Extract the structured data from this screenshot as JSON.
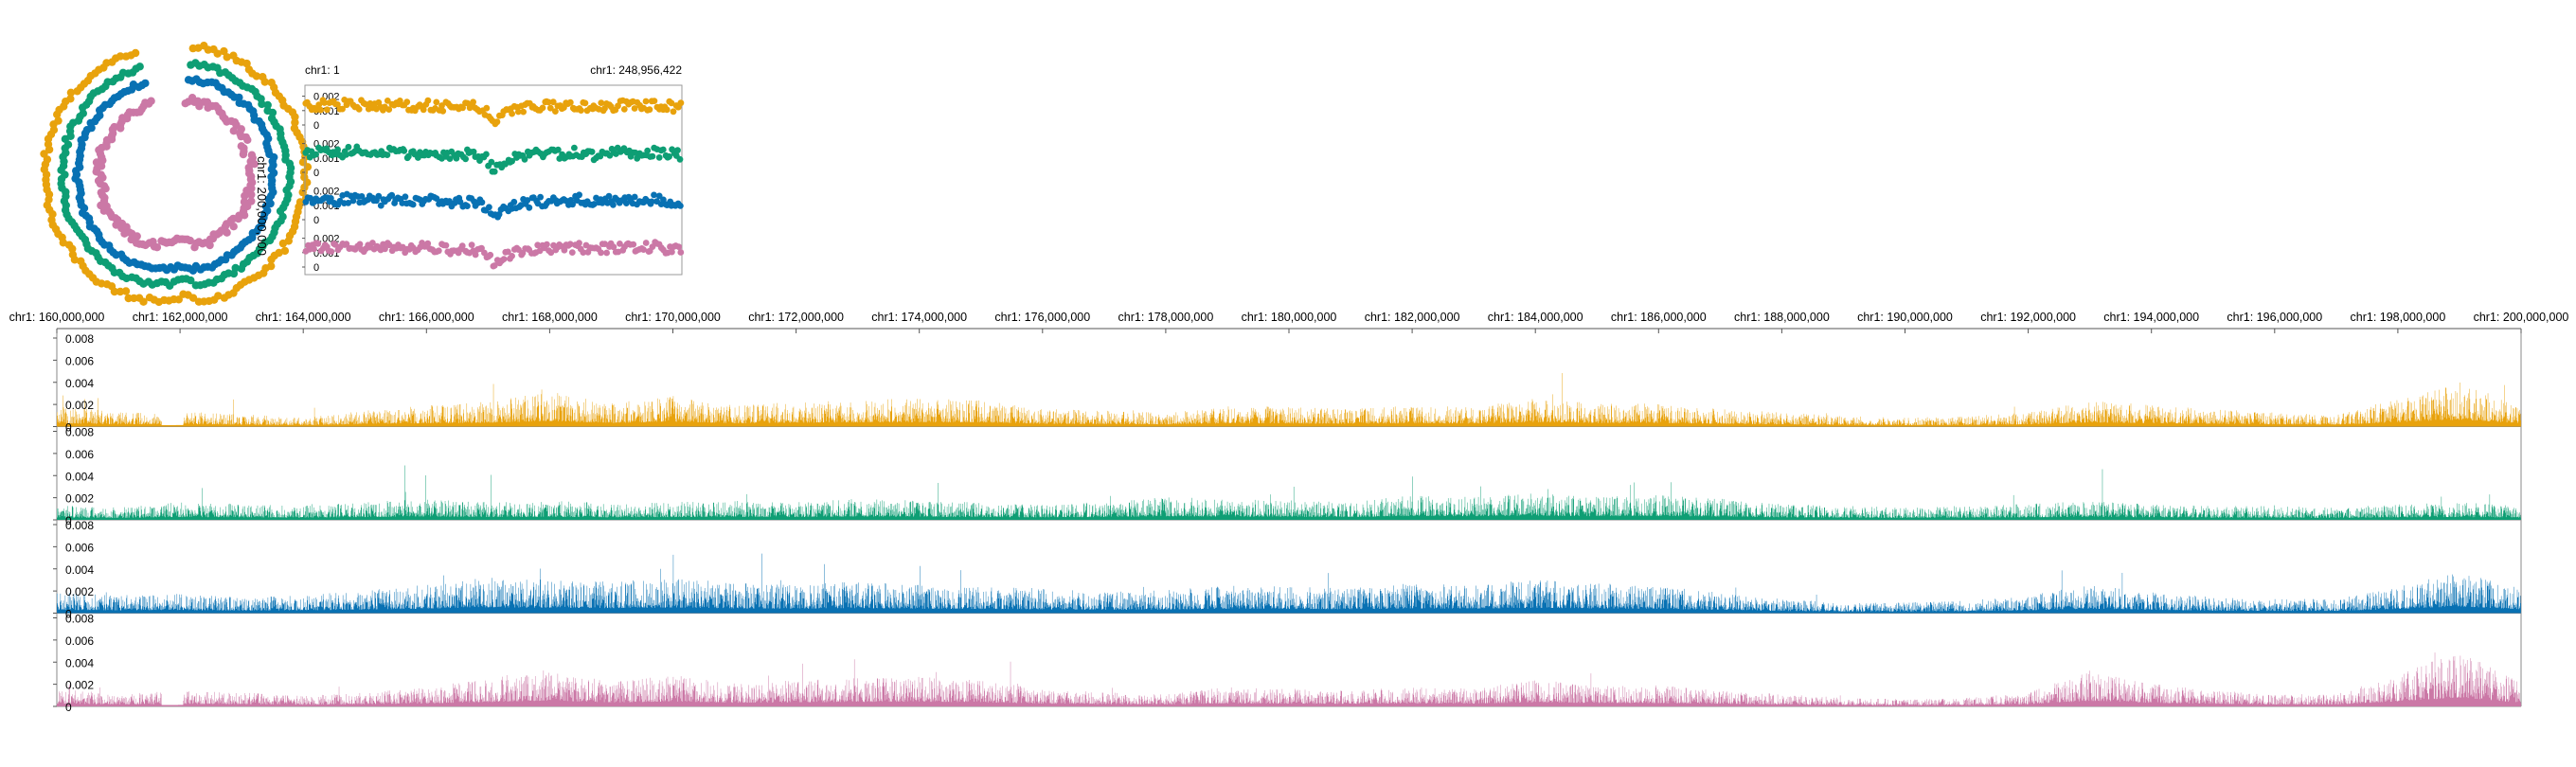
{
  "colors": {
    "series1": "#E8A20C",
    "series2": "#0E9E74",
    "series3": "#0871B3",
    "series4": "#CB78A6",
    "axis": "#555555",
    "text": "#000000"
  },
  "circos": {
    "label": "chr1: 200,000,000"
  },
  "overview": {
    "start_label": "chr1: 1",
    "end_label": "chr1: 248,956,422",
    "tracks": [
      {
        "ticks": [
          "0.002",
          "0.001",
          "0"
        ]
      },
      {
        "ticks": [
          "0.002",
          "0.001",
          "0"
        ]
      },
      {
        "ticks": [
          "0.002",
          "0.001",
          "0"
        ]
      },
      {
        "ticks": [
          "0.002",
          "0.001",
          "0"
        ]
      }
    ]
  },
  "detail": {
    "axis_labels": [
      "chr1: 160,000,000",
      "chr1: 162,000,000",
      "chr1: 164,000,000",
      "chr1: 166,000,000",
      "chr1: 168,000,000",
      "chr1: 170,000,000",
      "chr1: 172,000,000",
      "chr1: 174,000,000",
      "chr1: 176,000,000",
      "chr1: 178,000,000",
      "chr1: 180,000,000",
      "chr1: 182,000,000",
      "chr1: 184,000,000",
      "chr1: 186,000,000",
      "chr1: 188,000,000",
      "chr1: 190,000,000",
      "chr1: 192,000,000",
      "chr1: 194,000,000",
      "chr1: 196,000,000",
      "chr1: 198,000,000",
      "chr1: 200,000,000"
    ],
    "tracks": [
      {
        "ticks": [
          "0.008",
          "0.006",
          "0.004",
          "0.002",
          "0"
        ]
      },
      {
        "ticks": [
          "0.008",
          "0.006",
          "0.004",
          "0.002",
          "0"
        ]
      },
      {
        "ticks": [
          "0.008",
          "0.006",
          "0.004",
          "0.002",
          "0"
        ]
      },
      {
        "ticks": [
          "0.008",
          "0.006",
          "0.004",
          "0.002",
          "0"
        ]
      }
    ]
  },
  "chart_data": [
    {
      "type": "scatter",
      "subtype": "circular",
      "x_range": [
        1,
        248956422
      ],
      "series": [
        {
          "color": "#E8A20C"
        },
        {
          "color": "#0E9E74"
        },
        {
          "color": "#0871B3"
        },
        {
          "color": "#CB78A6"
        }
      ],
      "annotations": [
        "chr1: 200,000,000"
      ]
    },
    {
      "type": "scatter",
      "xlim": [
        1,
        248956422
      ],
      "x_labels": [
        "chr1: 1",
        "chr1: 248,956,422"
      ],
      "ylim": [
        0,
        0.0025
      ],
      "yticks": [
        0,
        0.001,
        0.002
      ],
      "profile": {
        "x": [
          0,
          10000000,
          20000000,
          30000000,
          40000000,
          50000000,
          60000000,
          70000000,
          80000000,
          90000000,
          100000000,
          110000000,
          120000000,
          125000000,
          130000000,
          140000000,
          150000000,
          160000000,
          170000000,
          180000000,
          190000000,
          200000000,
          210000000,
          220000000,
          230000000,
          240000000,
          248956422
        ],
        "y": [
          0.0012,
          0.0014,
          0.0013,
          0.0015,
          0.0014,
          0.0013,
          0.0014,
          0.0013,
          0.0014,
          0.0013,
          0.0012,
          0.0013,
          0.0009,
          0.0001,
          0.0006,
          0.0011,
          0.0012,
          0.0013,
          0.0012,
          0.0014,
          0.0012,
          0.0013,
          0.0014,
          0.0013,
          0.0014,
          0.0013,
          0.0012
        ]
      },
      "series": [
        {
          "color": "#E8A20C"
        },
        {
          "color": "#0E9E74"
        },
        {
          "color": "#0871B3"
        },
        {
          "color": "#CB78A6"
        }
      ]
    },
    {
      "type": "bar",
      "xlim": [
        160000000,
        200000000
      ],
      "ylim": [
        0,
        0.008
      ],
      "yticks": [
        0,
        0.002,
        0.004,
        0.006,
        0.008
      ],
      "xticks": [
        "chr1: 160,000,000",
        "chr1: 162,000,000",
        "chr1: 164,000,000",
        "chr1: 166,000,000",
        "chr1: 168,000,000",
        "chr1: 170,000,000",
        "chr1: 172,000,000",
        "chr1: 174,000,000",
        "chr1: 176,000,000",
        "chr1: 178,000,000",
        "chr1: 180,000,000",
        "chr1: 182,000,000",
        "chr1: 184,000,000",
        "chr1: 186,000,000",
        "chr1: 188,000,000",
        "chr1: 190,000,000",
        "chr1: 192,000,000",
        "chr1: 194,000,000",
        "chr1: 196,000,000",
        "chr1: 198,000,000",
        "chr1: 200,000,000"
      ],
      "series": [
        {
          "color": "#E8A20C",
          "x": [
            160000000,
            161000000,
            162000000,
            163000000,
            164000000,
            165000000,
            166000000,
            167000000,
            168000000,
            169000000,
            170000000,
            171000000,
            172000000,
            173000000,
            174000000,
            175000000,
            176000000,
            177000000,
            178000000,
            179000000,
            180000000,
            181000000,
            182000000,
            183000000,
            184000000,
            185000000,
            186000000,
            187000000,
            188000000,
            189000000,
            190000000,
            191000000,
            192000000,
            193000000,
            194000000,
            195000000,
            196000000,
            197000000,
            198000000,
            199000000,
            200000000
          ],
          "y": [
            0.0012,
            0.0008,
            0.0009,
            0.0007,
            0.0005,
            0.0009,
            0.0012,
            0.0014,
            0.002,
            0.0013,
            0.0018,
            0.0012,
            0.0014,
            0.0015,
            0.0016,
            0.0015,
            0.001,
            0.0009,
            0.0008,
            0.0012,
            0.0011,
            0.001,
            0.0012,
            0.0011,
            0.0016,
            0.0013,
            0.0013,
            0.001,
            0.0008,
            0.0006,
            0.0005,
            0.0006,
            0.0008,
            0.0015,
            0.0012,
            0.001,
            0.0008,
            0.0007,
            0.0016,
            0.0025,
            0.0012
          ],
          "peaks": [
            {
              "x": 170000000,
              "y": 0.0045
            },
            {
              "x": 166500000,
              "y": 0.0032
            },
            {
              "x": 198700000,
              "y": 0.0047
            },
            {
              "x": 175500000,
              "y": 0.0035
            },
            {
              "x": 160100000,
              "y": 0.004
            }
          ]
        },
        {
          "color": "#0E9E74",
          "x": [
            160000000,
            161000000,
            162000000,
            163000000,
            164000000,
            165000000,
            166000000,
            167000000,
            168000000,
            169000000,
            170000000,
            171000000,
            172000000,
            173000000,
            174000000,
            175000000,
            176000000,
            177000000,
            178000000,
            179000000,
            180000000,
            181000000,
            182000000,
            183000000,
            184000000,
            185000000,
            186000000,
            187000000,
            188000000,
            189000000,
            190000000,
            191000000,
            192000000,
            193000000,
            194000000,
            195000000,
            196000000,
            197000000,
            198000000,
            199000000,
            200000000
          ],
          "y": [
            0.0008,
            0.0007,
            0.001,
            0.0009,
            0.0008,
            0.001,
            0.0012,
            0.001,
            0.0011,
            0.0009,
            0.001,
            0.0011,
            0.001,
            0.0012,
            0.0011,
            0.001,
            0.0009,
            0.001,
            0.0013,
            0.0012,
            0.0011,
            0.001,
            0.0014,
            0.0013,
            0.0015,
            0.0013,
            0.0014,
            0.0012,
            0.0009,
            0.0008,
            0.0007,
            0.0008,
            0.0009,
            0.0011,
            0.0009,
            0.0008,
            0.0008,
            0.0007,
            0.0009,
            0.001,
            0.0008
          ],
          "peaks": [
            {
              "x": 165650000,
              "y": 0.0082
            },
            {
              "x": 167050000,
              "y": 0.0047
            },
            {
              "x": 174300000,
              "y": 0.0055
            },
            {
              "x": 182000000,
              "y": 0.005
            },
            {
              "x": 184200000,
              "y": 0.0048
            },
            {
              "x": 186200000,
              "y": 0.0052
            },
            {
              "x": 193200000,
              "y": 0.0052
            },
            {
              "x": 168600000,
              "y": 0.0038
            },
            {
              "x": 171200000,
              "y": 0.0036
            },
            {
              "x": 179700000,
              "y": 0.0038
            },
            {
              "x": 185600000,
              "y": 0.0042
            }
          ]
        },
        {
          "color": "#0871B3",
          "x": [
            160000000,
            161000000,
            162000000,
            163000000,
            164000000,
            165000000,
            166000000,
            167000000,
            168000000,
            169000000,
            170000000,
            171000000,
            172000000,
            173000000,
            174000000,
            175000000,
            176000000,
            177000000,
            178000000,
            179000000,
            180000000,
            181000000,
            182000000,
            183000000,
            184000000,
            185000000,
            186000000,
            187000000,
            188000000,
            189000000,
            190000000,
            191000000,
            192000000,
            193000000,
            194000000,
            195000000,
            196000000,
            197000000,
            198000000,
            199000000,
            200000000
          ],
          "y": [
            0.0012,
            0.001,
            0.0011,
            0.0009,
            0.001,
            0.0013,
            0.0016,
            0.0021,
            0.0019,
            0.0018,
            0.002,
            0.0017,
            0.0016,
            0.0018,
            0.0016,
            0.0015,
            0.0014,
            0.0012,
            0.0013,
            0.0016,
            0.0015,
            0.0014,
            0.0017,
            0.0016,
            0.0019,
            0.0017,
            0.0015,
            0.0012,
            0.0008,
            0.0006,
            0.0006,
            0.0007,
            0.001,
            0.0016,
            0.0012,
            0.0009,
            0.0008,
            0.0008,
            0.0015,
            0.0024,
            0.0014
          ],
          "peaks": [
            {
              "x": 167400000,
              "y": 0.0031
            },
            {
              "x": 198800000,
              "y": 0.0034
            },
            {
              "x": 170000000,
              "y": 0.0028
            },
            {
              "x": 160800000,
              "y": 0.003
            }
          ]
        },
        {
          "color": "#CB78A6",
          "x": [
            160000000,
            161000000,
            162000000,
            163000000,
            164000000,
            165000000,
            166000000,
            167000000,
            168000000,
            169000000,
            170000000,
            171000000,
            172000000,
            173000000,
            174000000,
            175000000,
            176000000,
            177000000,
            178000000,
            179000000,
            180000000,
            181000000,
            182000000,
            183000000,
            184000000,
            185000000,
            186000000,
            187000000,
            188000000,
            189000000,
            190000000,
            191000000,
            192000000,
            193000000,
            194000000,
            195000000,
            196000000,
            197000000,
            198000000,
            199000000,
            200000000
          ],
          "y": [
            0.001,
            0.0007,
            0.0009,
            0.0008,
            0.0006,
            0.0008,
            0.0011,
            0.0016,
            0.0021,
            0.0014,
            0.0018,
            0.0013,
            0.0015,
            0.0016,
            0.0017,
            0.0015,
            0.001,
            0.0008,
            0.0007,
            0.0011,
            0.001,
            0.0009,
            0.0011,
            0.001,
            0.0015,
            0.0012,
            0.0012,
            0.0009,
            0.0007,
            0.0005,
            0.0004,
            0.0005,
            0.0008,
            0.002,
            0.0013,
            0.0009,
            0.0007,
            0.0007,
            0.0018,
            0.0032,
            0.0013
          ],
          "peaks": [
            {
              "x": 170000000,
              "y": 0.0055
            },
            {
              "x": 167300000,
              "y": 0.004
            },
            {
              "x": 198600000,
              "y": 0.0068
            },
            {
              "x": 193000000,
              "y": 0.0045
            },
            {
              "x": 175600000,
              "y": 0.0038
            },
            {
              "x": 160200000,
              "y": 0.0042
            }
          ]
        }
      ]
    }
  ]
}
